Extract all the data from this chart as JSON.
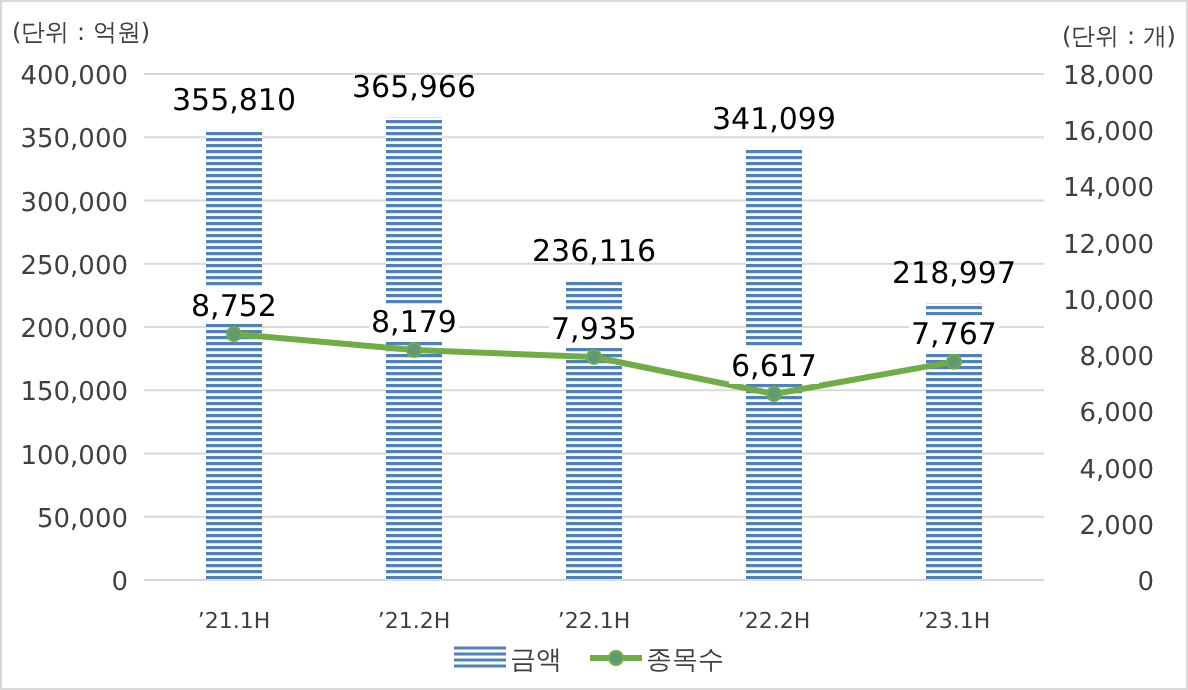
{
  "chart_data": {
    "type": "bar",
    "categories": [
      "’21.1H",
      "’21.2H",
      "’22.1H",
      "’22.2H",
      "’23.1H"
    ],
    "series": [
      {
        "name": "금액",
        "color": "#4f81bd",
        "values": [
          355810,
          365966,
          236116,
          341099,
          218997
        ],
        "value_labels": [
          "355,810",
          "365,966",
          "236,116",
          "341,099",
          "218,997"
        ]
      },
      {
        "name": "종목수",
        "type": "line",
        "axis": "y2",
        "color": "#70ad47",
        "marker": "circle",
        "values": [
          8752,
          8179,
          7935,
          6617,
          7767
        ],
        "value_labels": [
          "8,752",
          "8,179",
          "7,935",
          "6,617",
          "7,767"
        ]
      }
    ],
    "ylabel": "(단위 : 억원)",
    "y2label": "(단위 : 개)",
    "ylim": [
      0,
      400000
    ],
    "yticks": [
      0,
      {
        "value": 50000,
        "label": "50,000"
      },
      {
        "value": 100000,
        "label": "100,000"
      },
      {
        "value": 150000,
        "label": "150,000"
      },
      {
        "value": 200000,
        "label": "200,000"
      },
      {
        "value": 250000,
        "label": "250,000"
      },
      {
        "value": 300000,
        "label": "300,000"
      },
      {
        "value": 350000,
        "label": "350,000"
      },
      {
        "value": 400000,
        "label": "400,000"
      }
    ],
    "y2lim": [
      0,
      18000
    ],
    "y2ticks": [
      0,
      {
        "value": 2000,
        "label": "2,000"
      },
      {
        "value": 4000,
        "label": "4,000"
      },
      {
        "value": 6000,
        "label": "6,000"
      },
      {
        "value": 8000,
        "label": "8,000"
      },
      {
        "value": 10000,
        "label": "10,000"
      },
      {
        "value": 12000,
        "label": "12,000"
      },
      {
        "value": 14000,
        "label": "14,000"
      },
      {
        "value": 16000,
        "label": "16,000"
      },
      {
        "value": 18000,
        "label": "18,000"
      }
    ],
    "grid": "y",
    "legend": "bottom"
  }
}
